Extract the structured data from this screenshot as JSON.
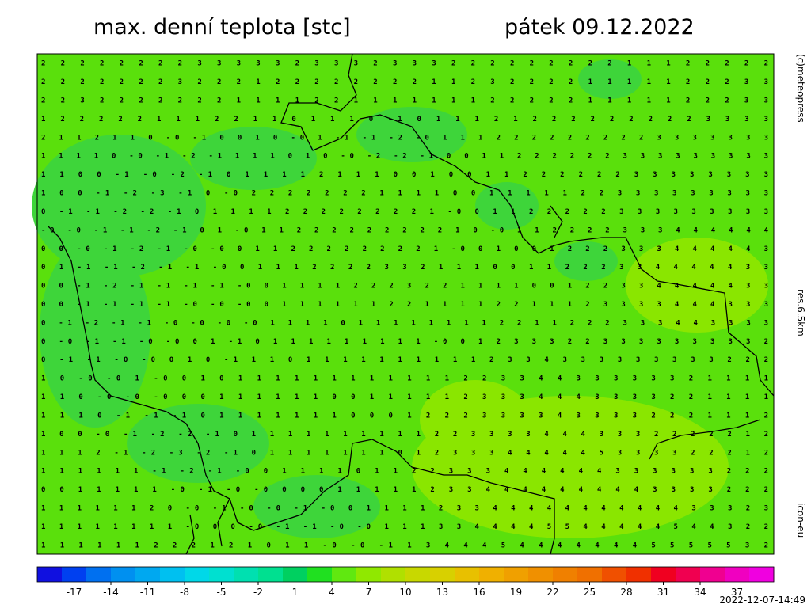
{
  "header": {
    "title": "max. denní teplota [stc]",
    "date": "pátek 09.12.2022"
  },
  "side_labels": {
    "credit": "(c)meteopress",
    "resolution": "res.6.5km",
    "model": "icon-eu"
  },
  "timestamp": "2022-12-07-14:49",
  "grid": {
    "rows": [
      "2 2 2 2 2 2 2 2 3 3 3 3 3 2 3 3 3 2 3 3 3 2 2 2 2 2 2 2 2 2 1 1 1 2 2 2 2 2",
      "2 2 2 2 2 2 2 3 2 2 2 1 2 2 2 2 2 2 2 2 1 1 2 3 2 2 2 2 1 1 1 1 1 2 2 2 3 3",
      "2 2 3 2 2 2 2 2 2 2 1 1 1 1 2 2 1 1 1 1 1 1 1 2 2 2 2 2 1 1 1 1 1 2 2 2 3 3",
      "1 2 2 2 2 2 1 1 1 2 2 1 1 0 1 1 1 0 -1 0 1 1 1 2 1 2 2 2 2 2 2 2 2 2 3 3 3 3",
      "2 1 1 2 1 1 0 -0 -1 0 0 1 0 -0 1 -1 -1 -2 -0 1 1 1 2 2 2 2 2 2 2 2 2 3 3 3 3 3 3 3",
      "1 1 1 1 0 -0 -1 -2 -1 1 1 1 0 1 0 -0 -2 -2 -1 0 0 1 1 2 2 2 2 2 2 3 3 3 3 3 3 3 3 3",
      "1 1 0 0 -1 -0 -2 -1 0 1 1 1 1 2 1 1 1 0 0 1 0 0 1 1 2 2 2 2 2 2 3 3 3 3 3 3 3 3",
      "1 0 0 -1 -2 -3 -1 0 -0 2 2 2 2 2 2 2 1 1 1 1 0 0 1 1 1 1 1 2 2 3 3 3 3 3 3 3 3 3",
      "0 -1 -1 -2 -2 -1 0 1 1 1 1 2 2 2 2 2 2 2 2 1 -0 0 1 1 2 2 2 2 2 3 3 3 3 3 3 3 3 3",
      "-0 -0 -1 -1 -2 -1 0 1 -0 1 1 2 2 2 2 2 2 2 2 2 1 0 -0 1 1 2 2 2 2 3 3 3 4 4 4 4 4 4",
      "0 0 -0 -1 -2 -1 -0 -0 0 1 1 2 2 2 2 2 2 2 2 1 -0 0 1 0 0 1 2 2 2 3 3 3 4 4 4 4 4 3",
      "0 1 -1 -1 -2 -1 -1 -0 0 1 1 1 2 2 2 2 3 3 2 1 1 1 0 0 1 1 2 2 2 3 3 4 4 4 4 4 3 3",
      "0 0 -1 -2 -1 -1 -1 -1 -0 0 1 1 1 1 2 2 2 3 2 2 1 1 1 1 0 0 1 2 2 3 3 4 4 4 4 4 3 3",
      "0 0 -1 -1 -1 -1 -0 -0 -0 0 1 1 1 1 1 1 2 2 1 1 1 1 2 2 1 1 1 2 3 3 3 3 4 4 4 3 3 3",
      "0 -1 -2 -1 -1 -0 -0 -0 -0 1 1 1 1 0 1 1 1 1 1 1 1 1 2 2 1 1 2 2 2 3 3 3 4 4 3 3 3 3",
      "0 -0 -1 -1 -0 -0 0 1 -1 0 1 1 1 1 1 1 1 1 1 -0 0 1 2 3 3 3 2 2 3 3 3 3 3 3 3 3 3 2",
      "0 -1 -1 -0 -0 0 1 0 -1 1 1 0 1 1 1 1 1 1 1 1 1 1 2 3 3 4 3 3 3 3 3 3 3 3 3 2 2 2",
      "1 0 -0 -0 1 -0 0 1 0 1 1 1 1 1 1 1 1 1 1 1 1 2 2 3 3 4 4 3 3 3 3 3 3 2 1 1 1 1",
      "1 1 0 -0 -0 -0 0 0 1 1 1 1 1 1 0 0 1 1 1 1 1 2 3 3 3 4 4 4 3 3 3 3 2 2 1 1 1 1",
      "1 1 1 0 -1 -1 -1 0 1 1 1 1 1 1 1 0 0 0 1 2 2 2 3 3 3 3 4 3 3 3 3 2 2 2 1 1 1 2",
      "1 0 0 -0 -1 -2 -2 -1 0 1 1 1 1 1 1 1 1 1 1 2 2 3 3 3 3 4 4 4 3 3 3 2 2 2 2 2 1 2",
      "1 1 1 2 -1 -2 -3 -2 -1 0 1 1 1 1 1 1 1 0 1 2 3 3 3 4 4 4 4 4 5 3 3 3 3 2 2 2 1 2",
      "1 1 1 1 1 1 -1 -2 -1 -0 0 1 1 1 1 0 1 1 2 2 3 3 3 4 4 4 4 4 4 3 3 3 3 3 3 2 2 2",
      "0 0 1 1 1 1 1 -0 -1 -0 -0 0 0 0 1 1 1 1 1 2 3 3 4 4 4 4 4 4 4 4 4 3 3 3 3 2 2 2",
      "1 1 1 1 1 1 2 0 -0 -1 -0 -0 -1 -0 0 1 1 1 1 2 3 3 4 4 4 4 4 4 4 4 4 4 4 3 3 3 2 3",
      "1 1 1 1 1 1 1 1 -0 0 0 -0 -1 -1 -0 -0 1 1 1 3 3 4 4 4 4 5 5 4 4 4 4 4 5 4 4 3 2 2",
      "1 1 1 1 1 1 2 2 2 1 2 1 0 1 1 -0 -0 -1 1 3 4 4 4 5 4 4 4 4 4 4 4 5 5 5 5 5 3 2"
    ]
  },
  "colorbar": {
    "range": [
      -20,
      40
    ],
    "colors": [
      "#1010e0",
      "#0040f0",
      "#0070f0",
      "#0090f0",
      "#00a8f0",
      "#00c0f0",
      "#00d8e8",
      "#00e0d0",
      "#00e0b0",
      "#00e090",
      "#00d060",
      "#20e020",
      "#60e810",
      "#90e800",
      "#b0e000",
      "#c8d800",
      "#d8d000",
      "#e8c000",
      "#f0b000",
      "#f0a000",
      "#f09000",
      "#f08000",
      "#f07000",
      "#f05000",
      "#f03000",
      "#f00020",
      "#f00050",
      "#f00090",
      "#f000c0",
      "#f000e0"
    ],
    "ticks": [
      -17,
      -14,
      -11,
      -8,
      -5,
      -2,
      1,
      4,
      7,
      10,
      13,
      16,
      19,
      22,
      25,
      28,
      31,
      34,
      37
    ]
  }
}
